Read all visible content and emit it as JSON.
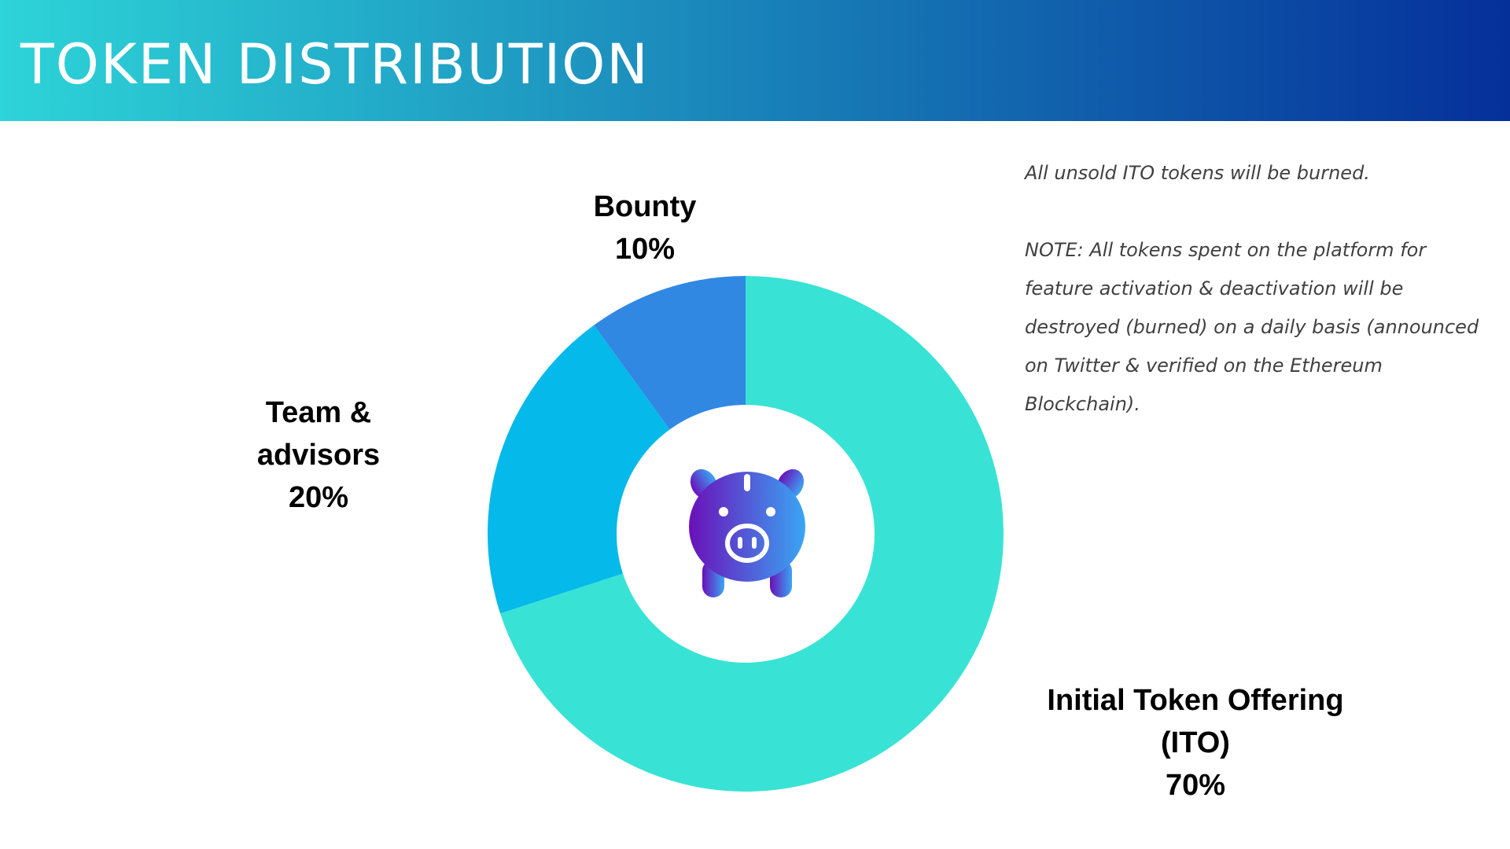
{
  "header": {
    "title": "TOKEN DISTRIBUTION",
    "gradient_start": "#2dd4d8",
    "gradient_end": "#05309a"
  },
  "chart_data": {
    "type": "pie",
    "donut": true,
    "start_angle_deg": 0,
    "direction": "clockwise",
    "center_icon": "piggy-bank-icon",
    "slices": [
      {
        "key": "ito",
        "label_lines": [
          "Initial Token Offering",
          "(ITO)",
          "70%"
        ],
        "value": 70,
        "color": "#38e3d5"
      },
      {
        "key": "team",
        "label_lines": [
          "Team &",
          "advisors",
          "20%"
        ],
        "value": 20,
        "color": "#05b9ea"
      },
      {
        "key": "bounty",
        "label_lines": [
          "Bounty",
          "10%"
        ],
        "value": 10,
        "color": "#3088e3"
      }
    ]
  },
  "notes": {
    "line1": "All unsold ITO tokens will be burned.",
    "line2": "NOTE: All tokens spent on the platform for feature activation & deactivation will be destroyed (burned) on a daily basis (announced on Twitter & verified on the Ethereum Blockchain)."
  },
  "icon_colors": {
    "gradient_start": "#6a10b8",
    "gradient_end": "#3aa6f5"
  }
}
